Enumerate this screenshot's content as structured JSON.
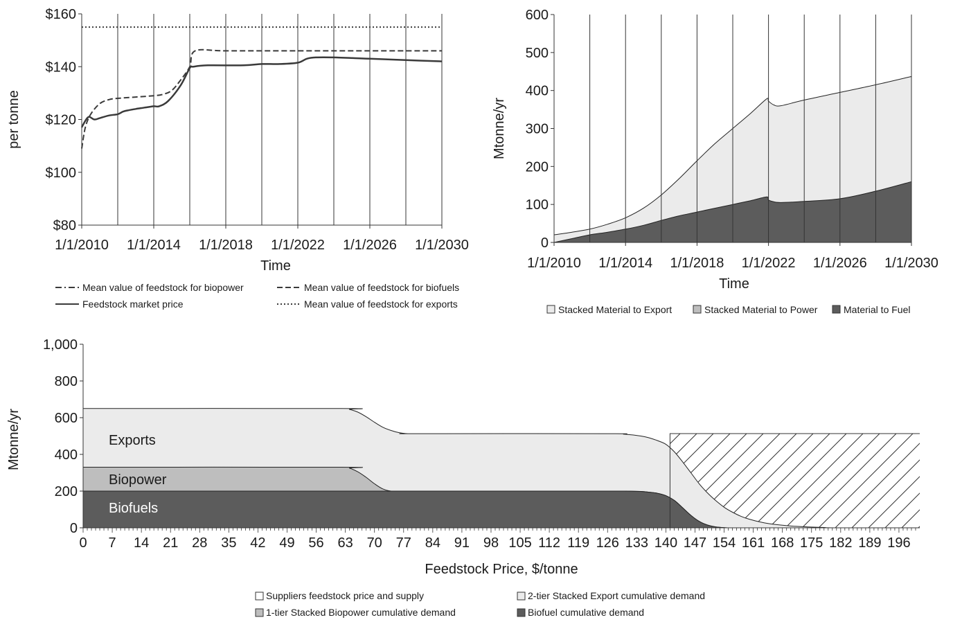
{
  "chart_data": [
    {
      "type": "line",
      "xlabel": "Time",
      "ylabel": "per tonne",
      "x_ticks": [
        "1/1/2010",
        "1/1/2014",
        "1/1/2018",
        "1/1/2022",
        "1/1/2026",
        "1/1/2030"
      ],
      "y_ticks": [
        "$80",
        "$100",
        "$120",
        "$140",
        "$160"
      ],
      "xlim": [
        2010,
        2030
      ],
      "ylim": [
        80,
        160
      ],
      "grid": "vertical every 2 years",
      "legend_position": "bottom",
      "series": [
        {
          "name": "Mean value of feedstock for biopower",
          "style": "dash-dot",
          "x": [
            2010,
            2030
          ],
          "values": [
            null,
            null
          ]
        },
        {
          "name": "Mean value of feedstock for biofuels",
          "style": "dashed",
          "x": [
            2010,
            2010.2,
            2010.5,
            2011,
            2011.5,
            2012,
            2013,
            2014,
            2014.5,
            2015,
            2015.5,
            2016,
            2016.3,
            2018,
            2022,
            2026,
            2030
          ],
          "values": [
            109,
            117,
            122,
            126,
            127.5,
            128,
            128.5,
            129,
            129.5,
            131,
            135,
            140,
            146,
            146,
            146,
            146,
            146
          ]
        },
        {
          "name": "Feedstock market price",
          "style": "solid",
          "x": [
            2010,
            2010.2,
            2010.4,
            2010.7,
            2011,
            2011.5,
            2012,
            2012.3,
            2012.6,
            2013,
            2013.5,
            2014,
            2014.3,
            2014.8,
            2015.5,
            2016,
            2016.2,
            2017,
            2019,
            2020,
            2021,
            2022,
            2022.5,
            2023,
            2024,
            2026,
            2028,
            2030
          ],
          "values": [
            117,
            119.5,
            121,
            120,
            120.5,
            121.5,
            122,
            123,
            123.5,
            124,
            124.5,
            125,
            125,
            127,
            133,
            139.5,
            140,
            140.5,
            140.5,
            141,
            141,
            141.5,
            143,
            143.5,
            143.5,
            143,
            142.5,
            142
          ]
        },
        {
          "name": "Mean value of feedstock for exports",
          "style": "dotted",
          "x": [
            2010,
            2030
          ],
          "values": [
            155,
            155
          ]
        }
      ]
    },
    {
      "type": "area",
      "xlabel": "Time",
      "ylabel": "Mtonne/yr",
      "x_ticks": [
        "1/1/2010",
        "1/1/2014",
        "1/1/2018",
        "1/1/2022",
        "1/1/2026",
        "1/1/2030"
      ],
      "y_ticks": [
        "0",
        "100",
        "200",
        "300",
        "400",
        "500",
        "600"
      ],
      "xlim": [
        2010,
        2030
      ],
      "ylim": [
        0,
        600
      ],
      "grid": "vertical every 2 years",
      "legend_position": "bottom",
      "x": [
        2010,
        2011,
        2012,
        2013,
        2014,
        2015,
        2016,
        2017,
        2018,
        2019,
        2020,
        2021,
        2021.9,
        2022,
        2022.3,
        2022.7,
        2024,
        2026,
        2028,
        2030
      ],
      "series": [
        {
          "name": "Stacked Material to Export",
          "color": "#ebebeb",
          "values": [
            20,
            27,
            35,
            48,
            65,
            90,
            125,
            168,
            215,
            260,
            300,
            340,
            378,
            372,
            362,
            360,
            375,
            395,
            415,
            437
          ]
        },
        {
          "name": "Stacked Material to Power",
          "color": "#bebebe",
          "values": [
            0,
            10,
            20,
            27,
            35,
            45,
            58,
            70,
            80,
            90,
            100,
            110,
            120,
            112,
            107,
            105,
            108,
            115,
            135,
            160
          ]
        },
        {
          "name": "Material to Fuel",
          "color": "#5c5c5c",
          "values": [
            0,
            10,
            20,
            27,
            35,
            45,
            58,
            70,
            80,
            90,
            100,
            110,
            120,
            112,
            107,
            105,
            108,
            115,
            135,
            160
          ]
        }
      ]
    },
    {
      "type": "area",
      "xlabel": "Feedstock Price, $/tonne",
      "ylabel": "Mtonne/yr",
      "x_ticks": [
        "0",
        "7",
        "14",
        "21",
        "28",
        "35",
        "42",
        "49",
        "56",
        "63",
        "70",
        "77",
        "84",
        "91",
        "98",
        "105",
        "112",
        "119",
        "126",
        "133",
        "140",
        "147",
        "154",
        "161",
        "168",
        "175",
        "182",
        "189",
        "196"
      ],
      "y_ticks": [
        "0",
        "200",
        "400",
        "600",
        "800",
        "1,000"
      ],
      "xlim": [
        0,
        201
      ],
      "ylim": [
        0,
        1000
      ],
      "legend_position": "bottom",
      "annotations": [
        "Exports",
        "Biopower",
        "Biofuels"
      ],
      "x": [
        0,
        62,
        64,
        66,
        68,
        70,
        72,
        74,
        76,
        78,
        80,
        126,
        130,
        134,
        136,
        138,
        140,
        142,
        144,
        146,
        148,
        150,
        152,
        154,
        156,
        158,
        160,
        163,
        166,
        170,
        174,
        178,
        181,
        201
      ],
      "series": [
        {
          "name": "2-tier Stacked Export cumulative demand",
          "color": "#ebebeb",
          "values": [
            650,
            650,
            645,
            630,
            605,
            575,
            548,
            530,
            518,
            513,
            513,
            513,
            510,
            500,
            490,
            475,
            455,
            415,
            360,
            300,
            240,
            190,
            148,
            112,
            85,
            63,
            47,
            30,
            19,
            10,
            5,
            2,
            0,
            0
          ]
        },
        {
          "name": "1-tier Stacked Biopower cumulative demand",
          "color": "#bebebe",
          "values": [
            330,
            330,
            325,
            305,
            275,
            240,
            212,
            200,
            200,
            200,
            200,
            200,
            200,
            198,
            194,
            188,
            175,
            150,
            110,
            68,
            35,
            15,
            5,
            1,
            0,
            0,
            0,
            0,
            0,
            0,
            0,
            0,
            0,
            0
          ]
        },
        {
          "name": "Biofuel cumulative demand",
          "color": "#5c5c5c",
          "values": [
            200,
            200,
            200,
            200,
            200,
            200,
            200,
            200,
            200,
            200,
            200,
            200,
            200,
            198,
            194,
            188,
            175,
            150,
            110,
            68,
            35,
            15,
            5,
            1,
            0,
            0,
            0,
            0,
            0,
            0,
            0,
            0,
            0,
            0
          ]
        },
        {
          "name": "Suppliers feedstock price and supply",
          "pattern": "hatched",
          "x": [
            141,
            201
          ],
          "values": [
            513,
            513
          ]
        }
      ]
    }
  ]
}
